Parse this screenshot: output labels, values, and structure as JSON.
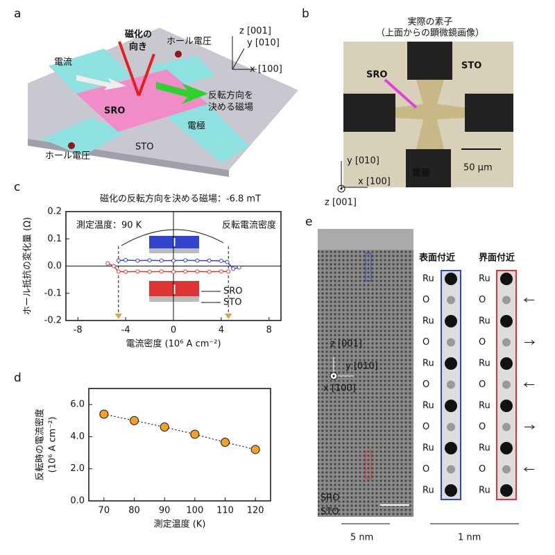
{
  "chart_data": [
    {
      "type": "line",
      "title": "磁化の反転方向を決める磁場：-6.8 mT",
      "xlabel": "電流密度 (10⁶ A cm⁻²)",
      "ylabel": "ホール抵抗の変化量 (Ω)",
      "xlim": [
        -9,
        9
      ],
      "xticks": [
        -8,
        -4,
        0,
        4,
        8
      ],
      "ylim": [
        -0.2,
        0.2
      ],
      "yticks": [
        -0.2,
        -0.1,
        {
          "value": 0,
          "label": "0.0"
        },
        0.1,
        0.2
      ],
      "annotations": [
        "測定温度：90 K",
        "反転電流密度",
        "SRO",
        "STO"
      ],
      "series": [
        {
          "color": "#3344cc",
          "x": [
            -4.6,
            -4,
            -3,
            -2,
            -1,
            0,
            1,
            2,
            3,
            4,
            4.5,
            5,
            5.5
          ],
          "values": [
            0.02,
            0.022,
            0.02,
            0.021,
            0.02,
            0.02,
            0.021,
            0.02,
            0.02,
            0.019,
            0.015,
            -0.01,
            -0.005
          ]
        },
        {
          "color": "#dd3333",
          "x": [
            -5.5,
            -5,
            -4.6,
            -4,
            -3,
            -2,
            -1,
            0,
            1,
            2,
            3,
            4,
            4.6
          ],
          "values": [
            0.01,
            0.0,
            -0.02,
            -0.021,
            -0.02,
            -0.021,
            -0.02,
            -0.021,
            -0.02,
            -0.02,
            -0.021,
            -0.02,
            -0.02
          ]
        }
      ]
    },
    {
      "type": "line",
      "xlabel": "測定温度 (K)",
      "ylabel": [
        "反転時の電流密度",
        "(10⁶ A cm⁻²)"
      ],
      "xlim": [
        65,
        125
      ],
      "xticks": [
        70,
        80,
        90,
        100,
        110,
        120
      ],
      "ylim": [
        0,
        7
      ],
      "yticks": [
        {
          "value": 0,
          "label": "0.0"
        },
        {
          "value": 2,
          "label": "2.0"
        },
        {
          "value": 4,
          "label": "4.0"
        },
        {
          "value": 6,
          "label": "6.0"
        }
      ],
      "series": [
        {
          "color": "#f0a030",
          "x": [
            70,
            80,
            90,
            100,
            110,
            120
          ],
          "values": [
            5.4,
            5.0,
            4.6,
            4.15,
            3.65,
            3.2
          ]
        }
      ]
    }
  ],
  "panels": {
    "a": {
      "label": "a",
      "texts": [
        "磁化の",
        "向き",
        "ホール電圧",
        "電流",
        "反転方向を",
        "決める磁場",
        "SRO",
        "電極",
        "STO",
        "ホール電圧",
        "z [001]",
        "y [010]",
        "x [100]"
      ]
    },
    "b": {
      "label": "b",
      "title": [
        "実際の素子",
        "（上面からの顕微鏡画像）"
      ],
      "texts": [
        "SRO",
        "STO",
        "電極",
        "50 µm",
        "y [010]",
        "x [100]",
        "z [001]"
      ]
    },
    "c": {
      "label": "c"
    },
    "d": {
      "label": "d"
    },
    "e": {
      "label": "e",
      "headers": [
        "表面付近",
        "界面付近"
      ],
      "atoms": [
        "Ru",
        "O",
        "Ru",
        "O",
        "Ru",
        "O",
        "Ru",
        "O",
        "Ru",
        "O",
        "Ru"
      ],
      "texts": [
        "z [001]",
        "y [010]",
        "x [100]",
        "SRO",
        "STO",
        "5 nm",
        "1 nm"
      ]
    }
  }
}
